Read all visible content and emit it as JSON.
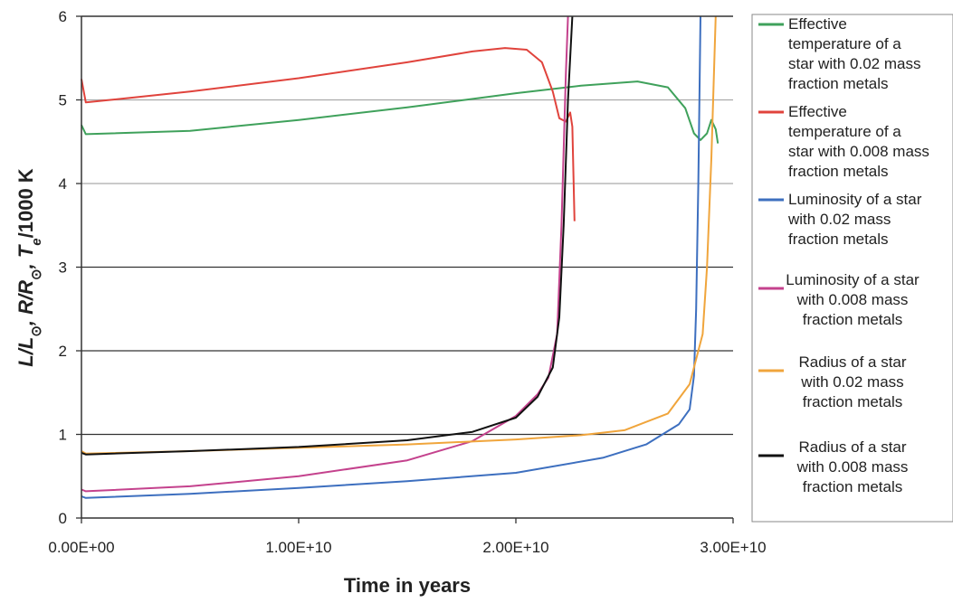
{
  "chart_data": {
    "type": "line",
    "xlabel": "Time in years",
    "ylabel_parts": [
      "L",
      "/",
      "L",
      "⊙",
      ", ",
      "R",
      "/",
      "R",
      "⊙",
      ", ",
      "T",
      "e",
      "/1000 K"
    ],
    "xlim": [
      0,
      30000000000
    ],
    "ylim": [
      0,
      6
    ],
    "x_ticks": [
      {
        "value": 0,
        "label": "0.00E+00"
      },
      {
        "value": 10000000000,
        "label": "1.00E+10"
      },
      {
        "value": 20000000000,
        "label": "2.00E+10"
      },
      {
        "value": 30000000000,
        "label": "3.00E+10"
      }
    ],
    "y_ticks": [
      {
        "value": 0,
        "label": "0"
      },
      {
        "value": 1,
        "label": "1"
      },
      {
        "value": 2,
        "label": "2"
      },
      {
        "value": 3,
        "label": "3"
      },
      {
        "value": 4,
        "label": "4"
      },
      {
        "value": 5,
        "label": "5"
      },
      {
        "value": 6,
        "label": "6"
      }
    ],
    "grid_lines": [
      {
        "value": 1,
        "color": "#333333"
      },
      {
        "value": 2,
        "color": "#333333"
      },
      {
        "value": 3,
        "color": "#333333"
      },
      {
        "value": 4,
        "color": "#aaaaaa"
      },
      {
        "value": 5,
        "color": "#aaaaaa"
      }
    ],
    "legend_position": "right",
    "series": [
      {
        "name": "Effective temperature of a star with 0.02 mass fraction metals",
        "color": "#3fa15b",
        "points": [
          [
            0,
            4.7
          ],
          [
            200000000.0,
            4.59
          ],
          [
            5000000000.0,
            4.63
          ],
          [
            10000000000.0,
            4.76
          ],
          [
            15000000000.0,
            4.91
          ],
          [
            20000000000.0,
            5.08
          ],
          [
            23000000000.0,
            5.17
          ],
          [
            25600000000.0,
            5.22
          ],
          [
            27000000000.0,
            5.15
          ],
          [
            27800000000.0,
            4.9
          ],
          [
            28200000000.0,
            4.6
          ],
          [
            28500000000.0,
            4.52
          ],
          [
            28800000000.0,
            4.6
          ],
          [
            29000000000.0,
            4.76
          ],
          [
            29200000000.0,
            4.65
          ],
          [
            29300000000.0,
            4.48
          ]
        ]
      },
      {
        "name": "Effective temperature of a star with 0.008 mass fraction metals",
        "color": "#e0433c",
        "points": [
          [
            0,
            5.25
          ],
          [
            200000000.0,
            4.97
          ],
          [
            5000000000.0,
            5.1
          ],
          [
            10000000000.0,
            5.26
          ],
          [
            15000000000.0,
            5.45
          ],
          [
            18000000000.0,
            5.58
          ],
          [
            19500000000.0,
            5.62
          ],
          [
            20500000000.0,
            5.6
          ],
          [
            21200000000.0,
            5.45
          ],
          [
            21700000000.0,
            5.1
          ],
          [
            22000000000.0,
            4.78
          ],
          [
            22300000000.0,
            4.74
          ],
          [
            22500000000.0,
            4.85
          ],
          [
            22600000000.0,
            4.68
          ],
          [
            22700000000.0,
            3.55
          ]
        ]
      },
      {
        "name": "Luminosity of a star with 0.02 mass fraction metals",
        "color": "#3d6fbf",
        "points": [
          [
            0,
            0.26
          ],
          [
            200000000.0,
            0.24
          ],
          [
            5000000000.0,
            0.29
          ],
          [
            10000000000.0,
            0.36
          ],
          [
            15000000000.0,
            0.44
          ],
          [
            20000000000.0,
            0.54
          ],
          [
            24000000000.0,
            0.72
          ],
          [
            26000000000.0,
            0.88
          ],
          [
            27500000000.0,
            1.12
          ],
          [
            28000000000.0,
            1.3
          ],
          [
            28200000000.0,
            1.7
          ],
          [
            28300000000.0,
            2.5
          ],
          [
            28400000000.0,
            4.0
          ],
          [
            28500000000.0,
            6.0
          ]
        ]
      },
      {
        "name": "Luminosity of a star with 0.008 mass fraction metals",
        "color": "#c4428d",
        "points": [
          [
            0,
            0.34
          ],
          [
            200000000.0,
            0.32
          ],
          [
            5000000000.0,
            0.38
          ],
          [
            10000000000.0,
            0.5
          ],
          [
            15000000000.0,
            0.69
          ],
          [
            18000000000.0,
            0.92
          ],
          [
            20000000000.0,
            1.22
          ],
          [
            21000000000.0,
            1.48
          ],
          [
            21500000000.0,
            1.68
          ],
          [
            21900000000.0,
            2.2
          ],
          [
            22100000000.0,
            3.5
          ],
          [
            22300000000.0,
            5.3
          ],
          [
            22400000000.0,
            6.0
          ]
        ]
      },
      {
        "name": "Radius of a star with 0.02 mass fraction metals",
        "color": "#f0a53c",
        "points": [
          [
            0,
            0.8
          ],
          [
            200000000.0,
            0.77
          ],
          [
            5000000000.0,
            0.8
          ],
          [
            10000000000.0,
            0.84
          ],
          [
            15000000000.0,
            0.88
          ],
          [
            20000000000.0,
            0.94
          ],
          [
            23000000000.0,
            0.99
          ],
          [
            25000000000.0,
            1.05
          ],
          [
            27000000000.0,
            1.25
          ],
          [
            28000000000.0,
            1.6
          ],
          [
            28600000000.0,
            2.2
          ],
          [
            28800000000.0,
            3.0
          ],
          [
            29000000000.0,
            4.3
          ],
          [
            29200000000.0,
            6.0
          ]
        ]
      },
      {
        "name": "Radius of a star with 0.008 mass fraction metals",
        "color": "#111111",
        "points": [
          [
            0,
            0.78
          ],
          [
            200000000.0,
            0.76
          ],
          [
            5000000000.0,
            0.8
          ],
          [
            10000000000.0,
            0.85
          ],
          [
            15000000000.0,
            0.93
          ],
          [
            18000000000.0,
            1.03
          ],
          [
            20000000000.0,
            1.2
          ],
          [
            21000000000.0,
            1.45
          ],
          [
            21700000000.0,
            1.8
          ],
          [
            22000000000.0,
            2.4
          ],
          [
            22200000000.0,
            3.5
          ],
          [
            22400000000.0,
            5.0
          ],
          [
            22600000000.0,
            6.0
          ]
        ]
      }
    ],
    "legend_lines": [
      [
        "Effective",
        "temperature of a",
        "star with 0.02 mass",
        "fraction metals"
      ],
      [
        "Effective",
        "temperature of a",
        "star with 0.008 mass",
        "fraction metals"
      ],
      [
        "Luminosity of a star",
        "with 0.02 mass",
        "fraction metals"
      ],
      [
        "Luminosity of a star",
        "with 0.008 mass",
        "fraction metals"
      ],
      [
        "Radius of a star",
        "with 0.02 mass",
        "fraction metals"
      ],
      [
        "Radius of a star",
        "with 0.008 mass",
        "fraction metals"
      ]
    ]
  }
}
